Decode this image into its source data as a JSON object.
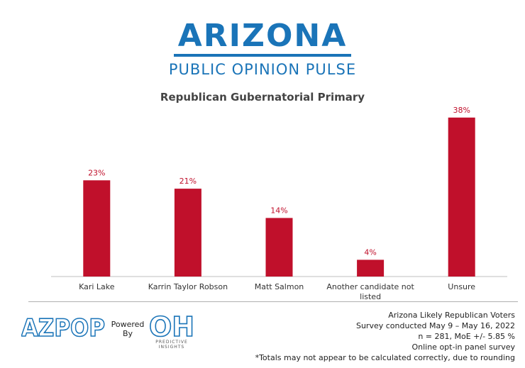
{
  "header": {
    "logo_main": "ARIZONA",
    "logo_sub": "PUBLIC OPINION PULSE"
  },
  "chart_data": {
    "type": "bar",
    "title": "Republican Gubernatorial Primary",
    "categories": [
      "Kari Lake",
      "Karrin Taylor Robson",
      "Matt Salmon",
      "Another candidate not listed",
      "Unsure"
    ],
    "category_lines": [
      [
        "Kari Lake"
      ],
      [
        "Karrin Taylor Robson"
      ],
      [
        "Matt Salmon"
      ],
      [
        "Another candidate not",
        "listed"
      ],
      [
        "Unsure"
      ]
    ],
    "values": [
      23,
      21,
      14,
      4,
      38
    ],
    "data_labels": [
      "23%",
      "21%",
      "14%",
      "4%",
      "38%"
    ],
    "ylim": [
      0,
      40
    ],
    "grid": false,
    "legend": "none",
    "bar_color": "#c0102b",
    "label_color": "#c0102b",
    "xlabel": "",
    "ylabel": ""
  },
  "footer": {
    "azpop_text": "AZPOP",
    "powered_by": [
      "Powered",
      "By"
    ],
    "oh_text": "OH",
    "predictive_insights": [
      "PREDICTIVE",
      "INSIGHTS"
    ],
    "survey_lines": [
      "Arizona Likely Republican Voters",
      "Survey conducted May 9 – May 16, 2022",
      "n = 281, MoE +/- 5.85 %",
      "Online opt-in panel survey",
      "*Totals may not appear to be calculated correctly, due to rounding"
    ],
    "brand_blue": "#1a74b8"
  }
}
